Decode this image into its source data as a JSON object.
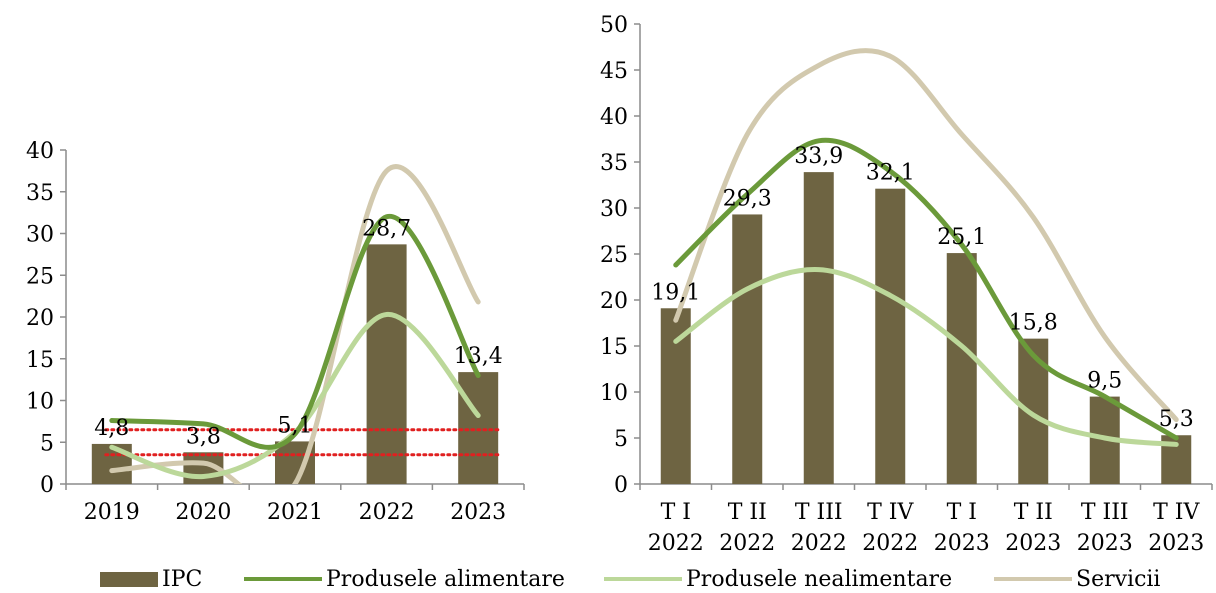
{
  "colors": {
    "ipc": "#6e6442",
    "alimentare": "#6b9a3a",
    "nealimentare": "#bcd89a",
    "servicii": "#d2c9ae",
    "target": "#e02020",
    "axis": "#8c8c8c"
  },
  "chart_data": [
    {
      "type": "bar",
      "categories": [
        "2019",
        "2020",
        "2021",
        "2022",
        "2023"
      ],
      "ylim": [
        0,
        40
      ],
      "yticks": [
        0,
        5,
        10,
        15,
        20,
        25,
        30,
        35,
        40
      ],
      "series": [
        {
          "name": "IPC",
          "kind": "bar",
          "values": [
            4.8,
            3.8,
            5.1,
            28.7,
            13.4
          ],
          "labels": [
            "4,8",
            "3,8",
            "5,1",
            "28,7",
            "13,4"
          ]
        },
        {
          "name": "Produsele alimentare",
          "kind": "line",
          "values": [
            7.6,
            7.2,
            6.0,
            32.0,
            13.0
          ]
        },
        {
          "name": "Produsele nealimentare",
          "kind": "line",
          "values": [
            4.4,
            0.9,
            6.2,
            20.3,
            8.2
          ]
        },
        {
          "name": "Servicii",
          "kind": "line",
          "values": [
            1.6,
            2.5,
            0.0,
            37.5,
            21.8
          ]
        }
      ],
      "reference_lines": [
        6.5,
        3.5
      ]
    },
    {
      "type": "bar",
      "categories": [
        [
          "T I",
          "2022"
        ],
        [
          "T II",
          "2022"
        ],
        [
          "T III",
          "2022"
        ],
        [
          "T IV",
          "2022"
        ],
        [
          "T I",
          "2023"
        ],
        [
          "T II",
          "2023"
        ],
        [
          "T III",
          "2023"
        ],
        [
          "T IV",
          "2023"
        ]
      ],
      "ylim": [
        0,
        50
      ],
      "yticks": [
        0,
        5,
        10,
        15,
        20,
        25,
        30,
        35,
        40,
        45,
        50
      ],
      "series": [
        {
          "name": "IPC",
          "kind": "bar",
          "values": [
            19.1,
            29.3,
            33.9,
            32.1,
            25.1,
            15.8,
            9.5,
            5.3
          ],
          "labels": [
            "19,1",
            "29,3",
            "33,9",
            "32,1",
            "25,1",
            "15,8",
            "9,5",
            "5,3"
          ]
        },
        {
          "name": "Produsele alimentare",
          "kind": "line",
          "values": [
            23.8,
            31.5,
            37.3,
            34.0,
            26.0,
            14.0,
            9.5,
            5.0
          ]
        },
        {
          "name": "Produsele nealimentare",
          "kind": "line",
          "values": [
            15.5,
            21.2,
            23.3,
            20.5,
            15.0,
            7.5,
            5.0,
            4.3
          ]
        },
        {
          "name": "Servicii",
          "kind": "line",
          "values": [
            17.8,
            38.0,
            45.5,
            46.5,
            38.0,
            29.0,
            16.0,
            7.0
          ]
        }
      ]
    }
  ],
  "legend": [
    {
      "label": "IPC",
      "kind": "bar",
      "color_key": "ipc"
    },
    {
      "label": "Produsele alimentare",
      "kind": "line",
      "color_key": "alimentare"
    },
    {
      "label": "Produsele nealimentare",
      "kind": "line",
      "color_key": "nealimentare"
    },
    {
      "label": "Servicii",
      "kind": "line",
      "color_key": "servicii"
    }
  ]
}
